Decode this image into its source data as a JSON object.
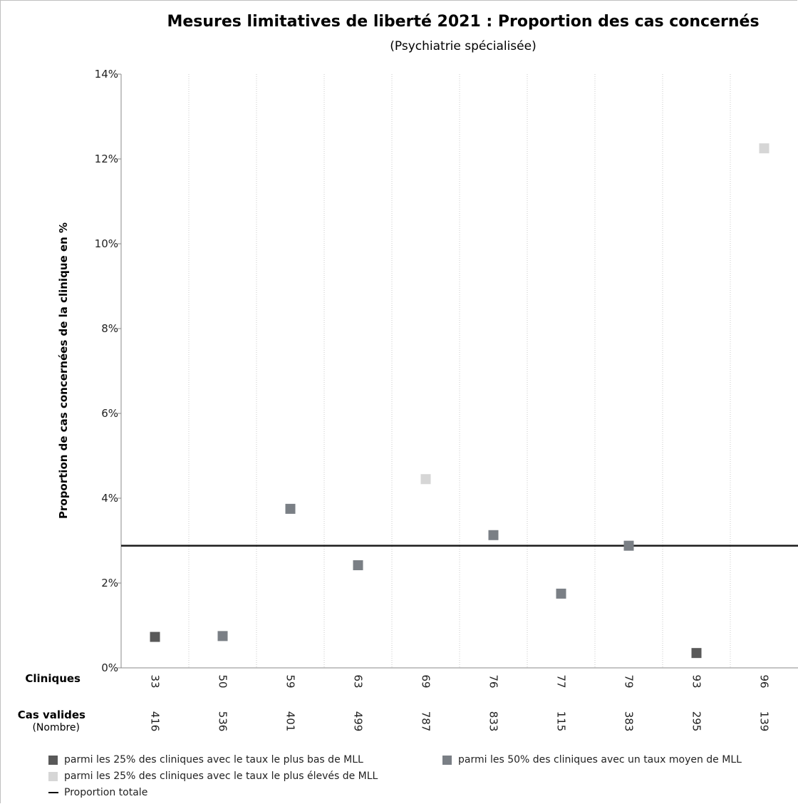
{
  "chart_data": {
    "type": "scatter",
    "title": "Mesures limitatives de liberté 2021 : Proportion des cas concernés",
    "subtitle": "(Psychiatrie spécialisée)",
    "ylabel": "Proportion de cas concernées de la clinique en %",
    "ylim": [
      0,
      14
    ],
    "yticks": [
      0,
      2,
      4,
      6,
      8,
      10,
      12,
      14
    ],
    "ytick_labels": [
      "0%",
      "2%",
      "4%",
      "6%",
      "8%",
      "10%",
      "12%",
      "14%"
    ],
    "row_labels": {
      "clinics": "Cliniques",
      "valid_cases": "Cas valides",
      "valid_cases_unit": "(Nombre)"
    },
    "clinics": [
      "33",
      "50",
      "59",
      "63",
      "69",
      "76",
      "77",
      "79",
      "93",
      "96"
    ],
    "valid_cases": [
      "416",
      "536",
      "401",
      "499",
      "787",
      "833",
      "115",
      "383",
      "295",
      "139"
    ],
    "values": [
      0.73,
      0.75,
      3.75,
      2.42,
      4.45,
      3.13,
      1.75,
      2.88,
      0.35,
      12.25
    ],
    "groups": [
      "low",
      "mid",
      "mid",
      "mid",
      "high",
      "mid",
      "mid",
      "mid",
      "low",
      "high"
    ],
    "total_proportion": 2.88,
    "colors": {
      "low": "#595959",
      "mid": "#7a7f85",
      "high": "#d6d6d6",
      "total": "#1a1a1a"
    },
    "grid": "vertical-dotted",
    "legend": [
      {
        "key": "low",
        "label": "parmi les 25% des cliniques avec le taux le plus bas de MLL"
      },
      {
        "key": "mid",
        "label": "parmi les 50% des cliniques avec un taux moyen de MLL"
      },
      {
        "key": "high",
        "label": "parmi les 25% des cliniques avec le taux le plus élevés de MLL"
      },
      {
        "key": "total",
        "label": "Proportion totale"
      }
    ]
  }
}
